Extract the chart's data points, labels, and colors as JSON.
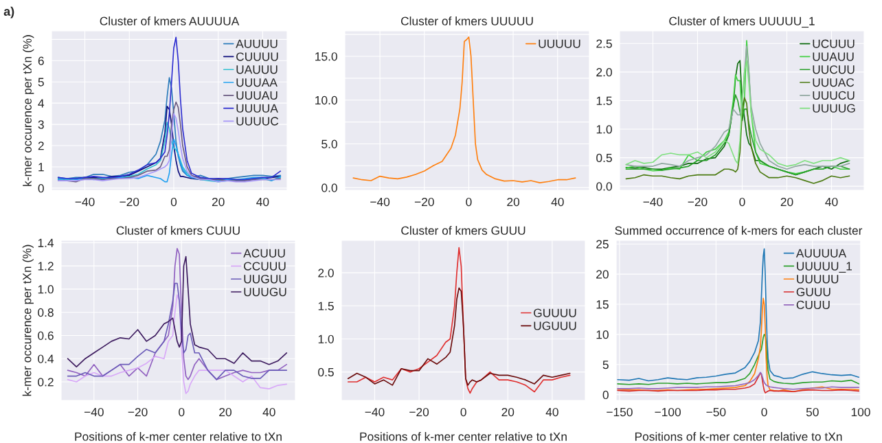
{
  "chart_data": [
    {
      "type": "line",
      "title": "Cluster of kmers AUUUUA",
      "ylabel": "k-mer occurence per tXn (%)",
      "annotations": [
        "a)"
      ],
      "grid": true,
      "legend": "top right",
      "xlim": [
        -55,
        51
      ],
      "ylim": [
        -0.1,
        7.4
      ],
      "xticks": [
        {
          "value": -40,
          "label": "−40"
        },
        {
          "value": -20,
          "label": "−20"
        },
        0,
        20,
        40
      ],
      "yticks": [
        0,
        1,
        2,
        3,
        4,
        5,
        6,
        {
          "value": 7,
          "label": null
        }
      ],
      "x": [
        -52,
        -48,
        -44,
        -40,
        -36,
        -32,
        -28,
        -24,
        -20,
        -16,
        -12,
        -8,
        -6,
        -4,
        -3,
        -2,
        -1,
        0,
        1,
        2,
        3,
        4,
        6,
        8,
        12,
        16,
        20,
        24,
        28,
        32,
        36,
        40,
        44,
        48
      ],
      "series": [
        {
          "name": "AUUUU",
          "color": "#2b7bba",
          "values": [
            0.5,
            0.45,
            0.5,
            0.5,
            0.65,
            0.65,
            0.55,
            0.6,
            0.75,
            0.8,
            1.1,
            1.6,
            2.2,
            3.2,
            4.3,
            5.2,
            4.7,
            3.5,
            2.2,
            1.5,
            1.1,
            0.8,
            0.6,
            0.5,
            0.6,
            0.45,
            0.4,
            0.45,
            0.5,
            0.55,
            0.6,
            0.6,
            0.55,
            0.6
          ]
        },
        {
          "name": "CUUUU",
          "color": "#0b0b7a",
          "values": [
            0.45,
            0.4,
            0.45,
            0.5,
            0.5,
            0.45,
            0.55,
            0.55,
            0.6,
            0.8,
            1.0,
            1.2,
            1.4,
            2.6,
            3.85,
            3.7,
            3.0,
            2.0,
            1.3,
            0.8,
            0.55,
            0.55,
            0.5,
            0.45,
            0.4,
            0.4,
            0.45,
            0.4,
            0.4,
            0.4,
            0.45,
            0.45,
            0.5,
            0.55
          ]
        },
        {
          "name": "UAUUU",
          "color": "#30c0d0",
          "values": [
            0.45,
            0.4,
            0.45,
            0.45,
            0.45,
            0.45,
            0.5,
            0.5,
            0.55,
            0.65,
            0.9,
            1.1,
            1.3,
            2.2,
            3.1,
            2.8,
            2.2,
            1.9,
            1.8,
            1.6,
            1.3,
            1.0,
            0.7,
            0.5,
            0.4,
            0.35,
            0.3,
            0.35,
            0.35,
            0.4,
            0.45,
            0.45,
            0.35,
            0.5
          ]
        },
        {
          "name": "UUUAA",
          "color": "#20a0f0",
          "values": [
            0.4,
            0.45,
            0.4,
            0.45,
            0.4,
            0.45,
            0.45,
            0.5,
            0.5,
            0.45,
            0.6,
            0.5,
            0.45,
            0.3,
            0.3,
            0.7,
            1.6,
            2.3,
            2.0,
            1.6,
            1.2,
            0.9,
            0.6,
            0.5,
            0.45,
            0.4,
            0.35,
            0.4,
            0.4,
            0.45,
            0.5,
            0.5,
            0.35,
            0.55
          ]
        },
        {
          "name": "UUUAU",
          "color": "#6a5a80",
          "values": [
            0.35,
            0.35,
            0.3,
            0.45,
            0.45,
            0.4,
            0.45,
            0.45,
            0.5,
            0.6,
            0.8,
            0.85,
            1.0,
            1.5,
            1.5,
            1.8,
            3.0,
            3.7,
            4.05,
            3.8,
            3.0,
            2.0,
            1.0,
            0.6,
            0.45,
            0.4,
            0.4,
            0.35,
            0.35,
            0.35,
            0.4,
            0.4,
            0.4,
            0.45
          ]
        },
        {
          "name": "UUUUA",
          "color": "#2e2ed0",
          "values": [
            0.5,
            0.45,
            0.45,
            0.5,
            0.55,
            0.5,
            0.5,
            0.55,
            0.65,
            0.85,
            1.1,
            1.2,
            1.4,
            1.7,
            2.5,
            3.5,
            5.0,
            6.6,
            7.1,
            6.0,
            4.2,
            2.8,
            1.3,
            0.7,
            0.5,
            0.45,
            0.45,
            0.45,
            0.4,
            0.4,
            0.45,
            0.5,
            0.5,
            0.8
          ]
        },
        {
          "name": "UUUUC",
          "color": "#a898f8",
          "values": [
            0.35,
            0.35,
            0.35,
            0.4,
            0.4,
            0.35,
            0.4,
            0.45,
            0.45,
            0.5,
            0.65,
            0.8,
            0.9,
            1.0,
            1.1,
            1.3,
            2.5,
            3.5,
            3.3,
            2.7,
            2.0,
            1.4,
            0.8,
            0.55,
            0.4,
            0.4,
            0.3,
            0.35,
            0.3,
            0.3,
            0.35,
            0.4,
            0.4,
            0.4
          ]
        }
      ]
    },
    {
      "type": "line",
      "title": "Cluster of kmers UUUUU",
      "grid": true,
      "legend": "top right",
      "xlim": [
        -55.8,
        54.3
      ],
      "ylim": [
        -0.3,
        17.9
      ],
      "xticks": [
        {
          "value": -40,
          "label": "−40"
        },
        {
          "value": -20,
          "label": "−20"
        },
        0,
        20,
        40
      ],
      "yticks": [
        {
          "value": 0,
          "label": "0.0"
        },
        {
          "value": 2.5,
          "label": null
        },
        {
          "value": 5,
          "label": "5.0"
        },
        {
          "value": 7.5,
          "label": null
        },
        {
          "value": 10,
          "label": "10.0"
        },
        {
          "value": 12.5,
          "label": null
        },
        {
          "value": 15,
          "label": "15.0"
        },
        {
          "value": 17.5,
          "label": null
        }
      ],
      "x": [
        -52,
        -48,
        -44,
        -40,
        -36,
        -32,
        -28,
        -24,
        -20,
        -16,
        -12,
        -8,
        -6,
        -4,
        -3,
        -2,
        -1,
        0,
        1,
        2,
        3,
        4,
        6,
        8,
        12,
        16,
        20,
        24,
        28,
        32,
        36,
        40,
        44,
        48
      ],
      "series": [
        {
          "name": "UUUUU",
          "color": "#ff7f0e",
          "values": [
            1.1,
            0.9,
            0.8,
            1.3,
            1.1,
            1.0,
            1.2,
            1.5,
            1.9,
            2.5,
            3.0,
            4.5,
            6.0,
            9.0,
            12.0,
            16.7,
            16.9,
            17.2,
            15.0,
            10.0,
            5.0,
            3.2,
            2.0,
            1.5,
            1.0,
            0.75,
            0.8,
            0.65,
            0.8,
            0.55,
            0.7,
            0.9,
            0.9,
            1.1
          ]
        }
      ]
    },
    {
      "type": "line",
      "title": "Cluster of kmers UUUUU_1",
      "grid": true,
      "legend": "top right",
      "xlim": [
        -54.9,
        54.6
      ],
      "ylim": [
        -0.07,
        2.72
      ],
      "xticks": [
        {
          "value": -40,
          "label": "−40"
        },
        {
          "value": -20,
          "label": "−20"
        },
        0,
        20,
        40
      ],
      "yticks": [
        {
          "value": 0,
          "label": "0.0"
        },
        {
          "value": 0.5,
          "label": "0.5"
        },
        {
          "value": 1,
          "label": "1.0"
        },
        {
          "value": 1.5,
          "label": "1.5"
        },
        {
          "value": 2,
          "label": "2.0"
        },
        {
          "value": 2.5,
          "label": "2.5"
        }
      ],
      "x": [
        -52,
        -48,
        -44,
        -40,
        -36,
        -32,
        -28,
        -24,
        -20,
        -16,
        -12,
        -8,
        -6,
        -4,
        -3,
        -2,
        -1,
        0,
        1,
        2,
        3,
        4,
        6,
        8,
        12,
        16,
        20,
        24,
        28,
        32,
        36,
        40,
        44,
        48
      ],
      "series": [
        {
          "name": "UCUUU",
          "color": "#0a6a0a",
          "values": [
            0.33,
            0.32,
            0.33,
            0.3,
            0.3,
            0.33,
            0.35,
            0.4,
            0.4,
            0.48,
            0.5,
            0.7,
            0.9,
            1.4,
            1.9,
            2.15,
            2.2,
            1.5,
            1.2,
            0.9,
            0.75,
            0.7,
            0.45,
            0.45,
            0.35,
            0.3,
            0.25,
            0.2,
            0.25,
            0.3,
            0.35,
            0.3,
            0.4,
            0.45
          ]
        },
        {
          "name": "UUAUU",
          "color": "#40d040",
          "values": [
            0.32,
            0.35,
            0.3,
            0.27,
            0.28,
            0.32,
            0.3,
            0.55,
            0.45,
            0.6,
            0.65,
            0.8,
            0.95,
            1.5,
            1.95,
            1.85,
            1.85,
            1.2,
            1.5,
            2.55,
            2.0,
            1.3,
            0.6,
            0.4,
            0.35,
            0.3,
            0.25,
            0.22,
            0.25,
            0.3,
            0.3,
            0.35,
            0.3,
            0.3
          ]
        },
        {
          "name": "UUCUU",
          "color": "#2aa02a",
          "values": [
            0.3,
            0.3,
            0.3,
            0.3,
            0.28,
            0.3,
            0.32,
            0.35,
            0.45,
            0.45,
            0.55,
            0.75,
            0.9,
            1.4,
            1.6,
            1.5,
            1.3,
            1.15,
            1.35,
            1.35,
            1.1,
            0.9,
            0.6,
            0.45,
            0.35,
            0.3,
            0.25,
            0.2,
            0.25,
            0.3,
            0.3,
            0.35,
            0.35,
            0.3
          ]
        },
        {
          "name": "UUUAC",
          "color": "#4a7a10",
          "values": [
            0.13,
            0.15,
            0.2,
            0.18,
            0.18,
            0.15,
            0.13,
            0.18,
            0.2,
            0.2,
            0.2,
            0.3,
            0.3,
            0.28,
            0.25,
            0.3,
            0.6,
            1.3,
            1.55,
            1.45,
            1.0,
            0.7,
            0.4,
            0.25,
            0.15,
            0.15,
            0.18,
            0.15,
            0.1,
            0.05,
            0.1,
            0.18,
            0.15,
            0.18
          ]
        },
        {
          "name": "UUUCU",
          "color": "#90a8a0",
          "values": [
            0.38,
            0.35,
            0.35,
            0.35,
            0.4,
            0.38,
            0.35,
            0.45,
            0.5,
            0.55,
            0.7,
            0.95,
            1.0,
            1.35,
            1.3,
            1.25,
            1.25,
            1.5,
            2.0,
            2.45,
            2.0,
            1.4,
            1.0,
            0.75,
            0.45,
            0.35,
            0.3,
            0.35,
            0.38,
            0.35,
            0.35,
            0.35,
            0.35,
            0.4
          ]
        },
        {
          "name": "UUUUG",
          "color": "#80e080",
          "values": [
            0.38,
            0.45,
            0.4,
            0.42,
            0.55,
            0.58,
            0.55,
            0.55,
            0.6,
            0.5,
            0.6,
            0.8,
            0.75,
            0.55,
            0.45,
            0.4,
            0.8,
            1.5,
            2.0,
            2.2,
            1.8,
            1.3,
            0.8,
            0.65,
            0.55,
            0.4,
            0.35,
            0.38,
            0.45,
            0.4,
            0.45,
            0.45,
            0.5,
            0.45
          ]
        }
      ]
    },
    {
      "type": "line",
      "title": "Cluster of kmers CUUU",
      "ylabel": "k-mer occurence per tXn (%)",
      "xlabel": "Positions of k-mer center relative to tXn",
      "grid": true,
      "legend": "top right",
      "xlim": [
        -55,
        52
      ],
      "ylim": [
        0.04,
        1.42
      ],
      "xticks": [
        {
          "value": -40,
          "label": "−40"
        },
        {
          "value": -20,
          "label": "−20"
        },
        0,
        20,
        40
      ],
      "yticks": [
        0.2,
        0.4,
        0.6,
        0.8,
        {
          "value": 1,
          "label": "1.0"
        },
        1.2,
        1.4
      ],
      "x": [
        -52,
        -48,
        -44,
        -40,
        -36,
        -32,
        -28,
        -24,
        -20,
        -16,
        -12,
        -8,
        -6,
        -4,
        -3,
        -2,
        -1,
        0,
        1,
        2,
        3,
        4,
        6,
        8,
        12,
        16,
        20,
        24,
        28,
        32,
        36,
        40,
        44,
        48
      ],
      "series": [
        {
          "name": "ACUUU",
          "color": "#9060c0",
          "values": [
            0.3,
            0.28,
            0.25,
            0.35,
            0.25,
            0.3,
            0.35,
            0.25,
            0.32,
            0.25,
            0.45,
            0.55,
            0.6,
            0.85,
            1.2,
            1.35,
            1.3,
            0.8,
            0.4,
            0.25,
            0.22,
            0.25,
            0.35,
            0.4,
            0.3,
            0.22,
            0.25,
            0.28,
            0.3,
            0.28,
            0.28,
            0.3,
            0.3,
            0.35
          ]
        },
        {
          "name": "CCUUU",
          "color": "#d8a8f8",
          "values": [
            0.22,
            0.2,
            0.25,
            0.28,
            0.25,
            0.25,
            0.28,
            0.3,
            0.32,
            0.36,
            0.42,
            0.4,
            0.55,
            0.6,
            0.8,
            0.95,
            0.9,
            0.5,
            0.2,
            0.1,
            0.12,
            0.18,
            0.25,
            0.3,
            0.3,
            0.3,
            0.3,
            0.25,
            0.2,
            0.25,
            0.15,
            0.14,
            0.17,
            0.18
          ]
        },
        {
          "name": "UUGUU",
          "color": "#6a5ab8",
          "values": [
            0.25,
            0.25,
            0.28,
            0.25,
            0.25,
            0.3,
            0.35,
            0.35,
            0.42,
            0.48,
            0.45,
            0.55,
            0.7,
            0.9,
            1.05,
            1.05,
            0.9,
            0.6,
            0.45,
            0.48,
            0.6,
            0.62,
            0.45,
            0.45,
            0.3,
            0.22,
            0.3,
            0.3,
            0.25,
            0.23,
            0.23,
            0.3,
            0.3,
            0.3
          ]
        },
        {
          "name": "UUUGU",
          "color": "#3c1a5e",
          "values": [
            0.4,
            0.33,
            0.4,
            0.45,
            0.5,
            0.55,
            0.58,
            0.57,
            0.65,
            0.55,
            0.6,
            0.7,
            0.72,
            0.75,
            0.65,
            0.55,
            0.5,
            0.55,
            1.2,
            1.28,
            1.0,
            0.7,
            0.52,
            0.5,
            0.48,
            0.4,
            0.4,
            0.36,
            0.45,
            0.38,
            0.38,
            0.35,
            0.38,
            0.45
          ]
        }
      ]
    },
    {
      "type": "line",
      "title": "Cluster of kmers GUUU",
      "xlabel": "Positions of k-mer center relative to tXn",
      "grid": true,
      "legend": "right",
      "xlim": [
        -55,
        54.9
      ],
      "ylim": [
        0.07,
        2.49
      ],
      "xticks": [
        {
          "value": -40,
          "label": "−40"
        },
        {
          "value": -20,
          "label": "−20"
        },
        0,
        20,
        40
      ],
      "yticks": [
        0.5,
        {
          "value": 1,
          "label": "1.0"
        },
        1.5,
        {
          "value": 2,
          "label": "2.0"
        }
      ],
      "x": [
        -52,
        -48,
        -44,
        -40,
        -36,
        -32,
        -28,
        -24,
        -20,
        -16,
        -12,
        -8,
        -6,
        -4,
        -3,
        -2,
        -1,
        0,
        1,
        2,
        3,
        4,
        6,
        8,
        12,
        16,
        20,
        24,
        28,
        32,
        36,
        40,
        44,
        48
      ],
      "series": [
        {
          "name": "GUUUU",
          "color": "#e03030",
          "values": [
            0.35,
            0.35,
            0.42,
            0.35,
            0.42,
            0.38,
            0.55,
            0.5,
            0.55,
            0.65,
            0.75,
            0.95,
            1.0,
            1.5,
            2.0,
            2.38,
            2.1,
            1.2,
            0.4,
            0.25,
            0.18,
            0.25,
            0.35,
            0.38,
            0.5,
            0.38,
            0.38,
            0.35,
            0.3,
            0.2,
            0.38,
            0.38,
            0.42,
            0.45
          ]
        },
        {
          "name": "UGUUU",
          "color": "#6a0a0a",
          "values": [
            0.4,
            0.48,
            0.42,
            0.32,
            0.38,
            0.3,
            0.55,
            0.52,
            0.52,
            0.7,
            0.62,
            0.72,
            0.8,
            1.2,
            1.6,
            1.77,
            1.72,
            1.2,
            0.4,
            0.3,
            0.35,
            0.38,
            0.35,
            0.38,
            0.48,
            0.45,
            0.45,
            0.42,
            0.38,
            0.32,
            0.45,
            0.42,
            0.45,
            0.48
          ]
        }
      ]
    },
    {
      "type": "line",
      "title": "Summed occurrence of k-mers for each cluster",
      "xlabel": "Positions of k-mer center relative to tXn",
      "grid": true,
      "legend": "top right",
      "xlim": [
        -153.5,
        100
      ],
      "ylim": [
        -0.95,
        25.6
      ],
      "xticks": [
        {
          "value": -150,
          "label": "−150"
        },
        {
          "value": -100,
          "label": "−100"
        },
        {
          "value": -50,
          "label": "−50"
        },
        0,
        50,
        100
      ],
      "yticks": [
        0,
        5,
        10,
        15,
        20,
        25
      ],
      "x": [
        -152,
        -140,
        -130,
        -120,
        -110,
        -100,
        -90,
        -80,
        -70,
        -60,
        -50,
        -40,
        -30,
        -20,
        -15,
        -10,
        -6,
        -4,
        -3,
        -2,
        -1,
        0,
        1,
        2,
        3,
        4,
        6,
        10,
        15,
        20,
        30,
        40,
        50,
        60,
        70,
        80,
        90,
        98
      ],
      "series": [
        {
          "name": "AUUUUA",
          "color": "#1f77b4",
          "values": [
            2.5,
            2.4,
            2.7,
            2.3,
            2.5,
            2.8,
            2.6,
            2.5,
            2.8,
            2.9,
            3.1,
            3.4,
            3.6,
            4.5,
            5.5,
            7.0,
            9.0,
            12.0,
            16.0,
            20.0,
            23.0,
            24.2,
            20.0,
            14.0,
            9.0,
            6.0,
            4.0,
            3.2,
            3.0,
            2.7,
            2.8,
            3.4,
            3.8,
            3.5,
            3.3,
            3.2,
            3.3,
            2.9
          ]
        },
        {
          "name": "UUUUU_1",
          "color": "#2ca02c",
          "values": [
            1.8,
            1.7,
            1.8,
            1.7,
            1.9,
            1.9,
            1.8,
            1.9,
            1.8,
            1.9,
            2.0,
            2.0,
            2.2,
            2.7,
            3.5,
            5.0,
            6.5,
            7.2,
            7.5,
            8.5,
            9.5,
            10.0,
            9.8,
            8.5,
            6.0,
            4.0,
            2.6,
            2.2,
            2.0,
            1.9,
            1.8,
            2.0,
            2.1,
            2.1,
            2.3,
            2.2,
            2.4,
            1.8
          ]
        },
        {
          "name": "UUUUU",
          "color": "#ff7f0e",
          "values": [
            0.9,
            0.8,
            0.8,
            0.7,
            0.7,
            0.8,
            0.7,
            0.8,
            0.9,
            0.9,
            1.0,
            1.1,
            1.2,
            1.5,
            2.2,
            3.5,
            6.0,
            8.0,
            10.5,
            14.0,
            16.0,
            15.0,
            11.0,
            6.0,
            3.0,
            1.5,
            0.8,
            0.7,
            0.6,
            0.8,
            0.5,
            0.8,
            1.1,
            1.3,
            0.9,
            0.9,
            0.9,
            0.8
          ]
        },
        {
          "name": "GUUU",
          "color": "#d62728",
          "values": [
            0.7,
            0.6,
            0.7,
            0.7,
            0.6,
            0.7,
            0.7,
            0.7,
            0.7,
            0.8,
            0.8,
            0.9,
            0.9,
            1.1,
            1.3,
            1.8,
            3.0,
            3.6,
            3.4,
            2.5,
            1.5,
            0.7,
            0.3,
            0.4,
            0.5,
            0.6,
            0.7,
            0.6,
            0.6,
            0.6,
            0.5,
            0.7,
            0.8,
            0.7,
            0.7,
            0.8,
            0.7,
            0.6
          ]
        },
        {
          "name": "CUUU",
          "color": "#9467bd",
          "values": [
            1.0,
            1.0,
            1.1,
            1.0,
            1.0,
            1.1,
            1.2,
            1.2,
            1.2,
            1.3,
            1.3,
            1.4,
            1.5,
            1.8,
            2.0,
            2.5,
            3.2,
            3.7,
            3.5,
            3.0,
            2.5,
            2.0,
            1.8,
            1.6,
            1.5,
            1.4,
            1.3,
            1.2,
            1.1,
            1.0,
            0.9,
            1.0,
            1.1,
            1.1,
            1.3,
            1.2,
            1.2,
            1.2
          ]
        }
      ]
    }
  ]
}
